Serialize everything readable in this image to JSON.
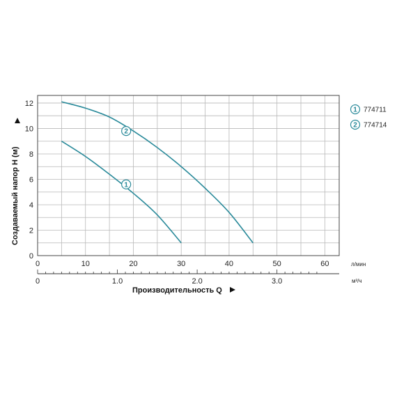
{
  "chart_data": {
    "type": "line",
    "xlabel": "Производительность Q",
    "ylabel": "Создаваемый напор H (м)",
    "x_unit": "л/мин",
    "x2_unit": "м³/ч",
    "xlim": [
      0,
      63
    ],
    "ylim": [
      0,
      12.6
    ],
    "x_ticks": [
      0,
      10,
      20,
      30,
      40,
      50,
      60
    ],
    "x_tick_labels": [
      "0",
      "10",
      "20",
      "30",
      "40",
      "50",
      "60"
    ],
    "x2_ticks": [
      0,
      1.0,
      2.0,
      3.0
    ],
    "x2_tick_labels": [
      "0",
      "1.0",
      "2.0",
      "3.0"
    ],
    "y_ticks": [
      0,
      2,
      4,
      6,
      8,
      10,
      12
    ],
    "y_tick_labels": [
      "0",
      "2",
      "4",
      "6",
      "8",
      "10",
      "12"
    ],
    "grid": true,
    "legend_position": "right",
    "series_color": "#2a8a9a",
    "series": [
      {
        "marker": "1",
        "name": "774711",
        "x": [
          5,
          10,
          15,
          20,
          25,
          30
        ],
        "y": [
          9.0,
          7.8,
          6.4,
          4.9,
          3.2,
          1.0
        ],
        "label_at": [
          18.5,
          5.6
        ]
      },
      {
        "marker": "2",
        "name": "774714",
        "x": [
          5,
          10,
          15,
          20,
          25,
          30,
          35,
          40,
          45
        ],
        "y": [
          12.1,
          11.6,
          10.9,
          9.8,
          8.5,
          7.0,
          5.3,
          3.4,
          1.0
        ],
        "label_at": [
          18.5,
          9.8
        ]
      }
    ]
  }
}
